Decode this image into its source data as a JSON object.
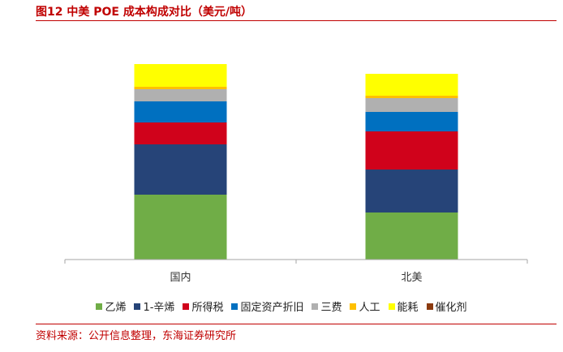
{
  "figure": {
    "title": "图12  中美 POE 成本构成对比（美元/吨）",
    "source": "资料来源：公开信息整理，东海证券研究所"
  },
  "chart_data": {
    "type": "bar",
    "stacked": true,
    "categories": [
      "国内",
      "北美"
    ],
    "series": [
      {
        "name": "乙烯",
        "color": "#70ad47",
        "values": [
          80,
          58
        ]
      },
      {
        "name": "1-辛烯",
        "color": "#264478",
        "values": [
          62,
          53
        ]
      },
      {
        "name": "所得税",
        "color": "#d0021b",
        "values": [
          27,
          47
        ]
      },
      {
        "name": "固定资产折旧",
        "color": "#0070c0",
        "values": [
          26,
          24
        ]
      },
      {
        "name": "三费",
        "color": "#b0b0b0",
        "values": [
          15,
          17
        ]
      },
      {
        "name": "人工",
        "color": "#ffc000",
        "values": [
          3,
          3
        ]
      },
      {
        "name": "能耗",
        "color": "#ffff00",
        "values": [
          28,
          27
        ]
      },
      {
        "name": "催化剂",
        "color": "#8b3a0e",
        "values": [
          0,
          0
        ]
      }
    ],
    "ylim": [
      0,
      260
    ],
    "grid": false,
    "legend_position": "bottom"
  }
}
